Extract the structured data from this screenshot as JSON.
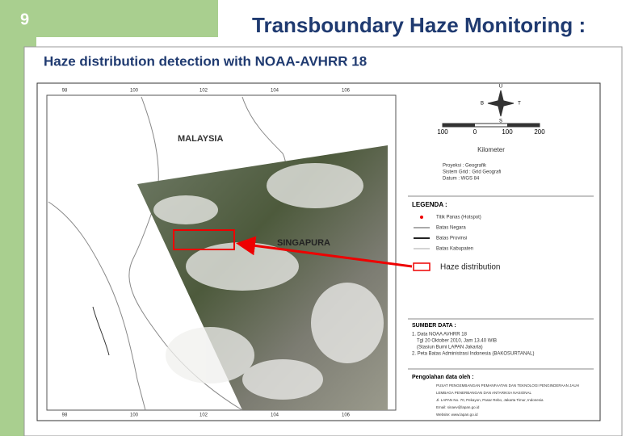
{
  "slide_number": "9",
  "title": "Transboundary Haze Monitoring :",
  "subtitle": "Haze distribution detection with NOAA-AVHRR 18",
  "map": {
    "country_label": "MALAYSIA",
    "city_label": "SINGAPURA",
    "grid_top": [
      "98",
      "100",
      "102",
      "104",
      "106"
    ],
    "grid_bottom": [
      "98",
      "100",
      "102",
      "104",
      "106"
    ],
    "compass": [
      "U",
      "B",
      "T",
      "S"
    ],
    "scale": {
      "ticks": [
        "100",
        "0",
        "100",
        "200"
      ],
      "unit": "Kilometer"
    },
    "projection": [
      "Proyeksi : Geografik",
      "Sistem Grid : Grid Geografi",
      "Datum : WGS 84"
    ],
    "legend": {
      "title": "LEGENDA :",
      "items": [
        "Titik Panas (Hotspot)",
        "Batas Negara",
        "Batas Provinsi",
        "Batas Kabupaten"
      ]
    },
    "annotation": "Haze distribution",
    "source": {
      "title": "SUMBER DATA :",
      "items": [
        "1. Data NOAA AVHRR 18",
        "Tgl 20 Oktober 2010, Jam 13.40 WIB",
        "(Stasiun Bumi LAPAN Jakarta)",
        "2. Peta Batas Administrasi Indonesia (BAKOSURTANAL)"
      ]
    },
    "processed_by": {
      "title": "Pengolahan data oleh :",
      "lines": [
        "PUSAT PENGEMBANGAN PEMANFAATAN DAN TEKNOLOGI PENGINDERAAN JAUH",
        "LEMBAGA PENERBANGAN DAN ANTARIKSA NASIONAL",
        "Jl. LAPAN No. 70, Pekayon, Pasar Rebo, Jakarta Timur, Indonesia",
        "Email: sinaev@lapan.go.id",
        "Website: www.lapan.go.id"
      ]
    }
  }
}
